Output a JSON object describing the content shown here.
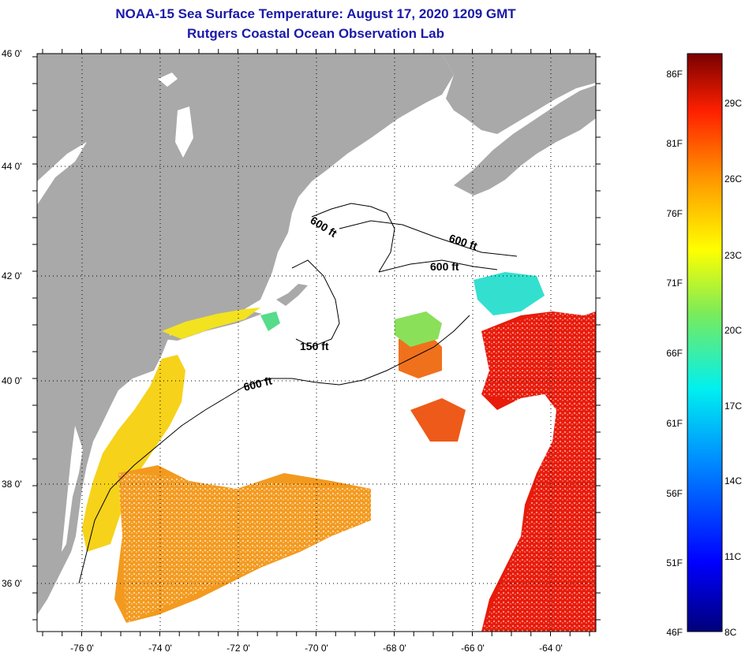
{
  "header": {
    "title": "NOAA-15 Sea Surface Temperature:  August 17, 2020 1209 GMT",
    "subtitle": "Rutgers Coastal Ocean Observation Lab"
  },
  "map": {
    "lat_labels": [
      "46 0'",
      "44 0'",
      "42 0'",
      "40 0'",
      "38 0'",
      "36 0'"
    ],
    "lon_labels": [
      "-76 0'",
      "-74 0'",
      "-72 0'",
      "-70 0'",
      "-68 0'",
      "-66 0'",
      "-64 0'"
    ],
    "contour_labels": [
      "600 ft",
      "600 ft",
      "600 ft",
      "150 ft",
      "600 ft"
    ],
    "colors": {
      "land": "#a9a9a9",
      "water_nodata": "#ffffff",
      "gulf_stream": "#e81a0a",
      "shelf_warm": "#f6d21a",
      "mid_warm": "#f39a1e",
      "cool": "#33e0d0",
      "mild": "#8be05a"
    }
  },
  "colorbar": {
    "fahrenheit": [
      "86F",
      "81F",
      "76F",
      "71F",
      "66F",
      "61F",
      "56F",
      "51F",
      "46F"
    ],
    "celsius": [
      "29C",
      "26C",
      "23C",
      "20C",
      "17C",
      "14C",
      "11C",
      "8C"
    ]
  }
}
